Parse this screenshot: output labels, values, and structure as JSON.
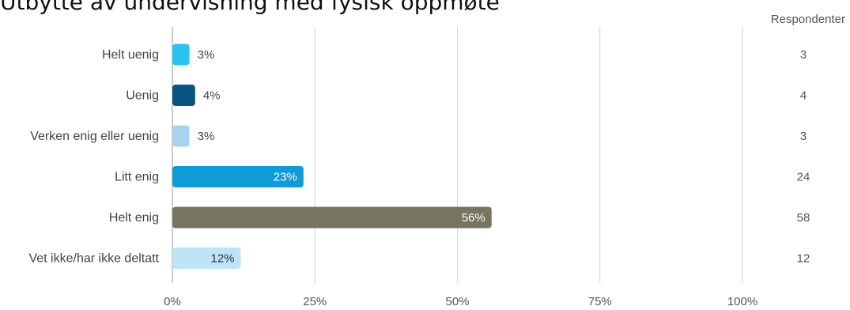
{
  "chart_data": {
    "type": "bar",
    "orientation": "horizontal",
    "title": "Utbytte av undervisning med fysisk oppmøte",
    "count_header": "Respondenter",
    "xlim": [
      0,
      100
    ],
    "x_ticks": [
      {
        "value": 0,
        "label": "0%"
      },
      {
        "value": 25,
        "label": "25%"
      },
      {
        "value": 50,
        "label": "50%"
      },
      {
        "value": 75,
        "label": "75%"
      },
      {
        "value": 100,
        "label": "100%"
      }
    ],
    "grid": true,
    "bars": [
      {
        "category": "Helt uenig",
        "value": 3,
        "label": "3%",
        "count": "3",
        "color": "#29c3ef",
        "label_inside": false
      },
      {
        "category": "Uenig",
        "value": 4,
        "label": "4%",
        "count": "4",
        "color": "#0a5481",
        "label_inside": false
      },
      {
        "category": "Verken enig eller uenig",
        "value": 3,
        "label": "3%",
        "count": "3",
        "color": "#a7d3ef",
        "label_inside": false
      },
      {
        "category": "Litt enig",
        "value": 23,
        "label": "23%",
        "count": "24",
        "color": "#0f9ad8",
        "label_inside": true
      },
      {
        "category": "Helt enig",
        "value": 56,
        "label": "56%",
        "count": "58",
        "color": "#77745f",
        "label_inside": true
      },
      {
        "category": "Vet ikke/har ikke deltatt",
        "value": 12,
        "label": "12%",
        "count": "12",
        "color": "#bde5f7",
        "label_inside": true
      }
    ]
  }
}
